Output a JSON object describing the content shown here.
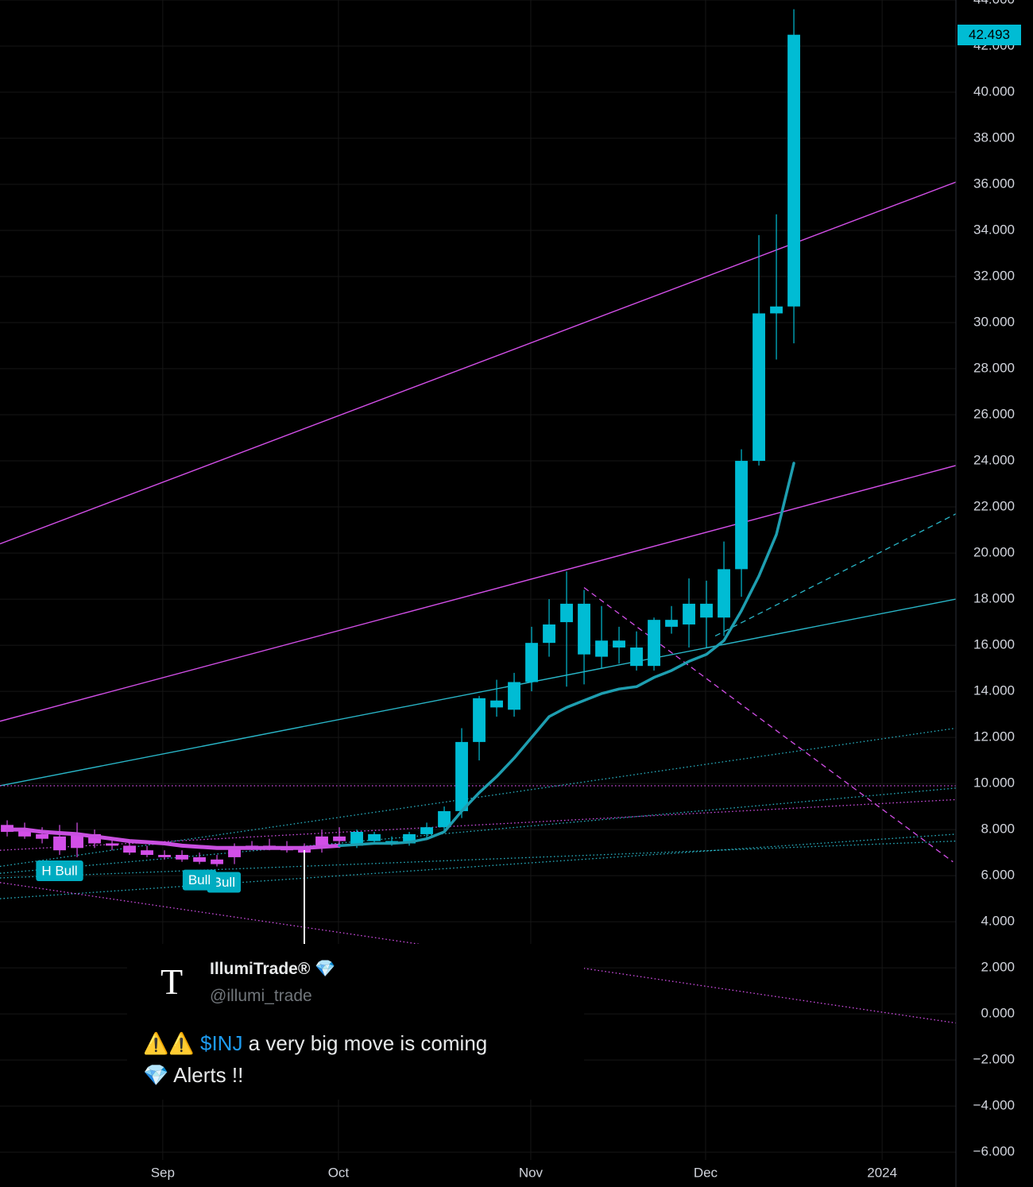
{
  "chart_data": {
    "type": "candlestick",
    "xlim": [
      -0.41,
      54.27
    ],
    "ylim": [
      -6.34,
      44
    ],
    "grid": true,
    "xticks": [
      {
        "value": 8.9,
        "label": "Sep"
      },
      {
        "value": 18.95,
        "label": "Oct"
      },
      {
        "value": 29.95,
        "label": "Nov"
      },
      {
        "value": 39.95,
        "label": "Dec"
      },
      {
        "value": 50.05,
        "label": "2024"
      }
    ],
    "yticks": [
      {
        "value": 44,
        "label": "44.000"
      },
      {
        "value": 42,
        "label": "42.000"
      },
      {
        "value": 40,
        "label": "40.000"
      },
      {
        "value": 38,
        "label": "38.000"
      },
      {
        "value": 36,
        "label": "36.000"
      },
      {
        "value": 34,
        "label": "34.000"
      },
      {
        "value": 32,
        "label": "32.000"
      },
      {
        "value": 30,
        "label": "30.000"
      },
      {
        "value": 28,
        "label": "28.000"
      },
      {
        "value": 26,
        "label": "26.000"
      },
      {
        "value": 24,
        "label": "24.000"
      },
      {
        "value": 22,
        "label": "22.000"
      },
      {
        "value": 20,
        "label": "20.000"
      },
      {
        "value": 18,
        "label": "18.000"
      },
      {
        "value": 16,
        "label": "16.000"
      },
      {
        "value": 14,
        "label": "14.000"
      },
      {
        "value": 12,
        "label": "12.000"
      },
      {
        "value": 10,
        "label": "10.000"
      },
      {
        "value": 8,
        "label": "8.000"
      },
      {
        "value": 6,
        "label": "6.000"
      },
      {
        "value": 4,
        "label": "4.000"
      },
      {
        "value": 2,
        "label": "2.000"
      },
      {
        "value": 0,
        "label": "0.000"
      },
      {
        "value": -2,
        "label": "−2.000"
      },
      {
        "value": -4,
        "label": "−4.000"
      },
      {
        "value": -6,
        "label": "−6.000"
      }
    ],
    "open": [
      8.2,
      8.0,
      7.8,
      7.7,
      7.8,
      7.8,
      7.4,
      7.3,
      7.1,
      6.9,
      6.9,
      6.8,
      6.7,
      7.2,
      7.3,
      7.3,
      7.2,
      7.2,
      7.7,
      7.7,
      7.3,
      7.5,
      7.5,
      7.4,
      7.8,
      8.1,
      8.8,
      11.8,
      13.3,
      13.2,
      14.4,
      16.1,
      17.0,
      17.8,
      15.5,
      16.2,
      15.9,
      15.1,
      16.8,
      16.9,
      17.2,
      17.2,
      19.3,
      24.0,
      30.4,
      30.7
    ],
    "high": [
      8.4,
      8.3,
      8.1,
      8.2,
      8.3,
      8.0,
      7.6,
      7.5,
      7.3,
      7.1,
      7.1,
      7.0,
      6.9,
      7.4,
      7.5,
      7.6,
      7.5,
      7.4,
      8.0,
      8.1,
      8.0,
      7.9,
      7.7,
      7.9,
      8.3,
      9.0,
      12.4,
      13.8,
      14.5,
      14.8,
      16.8,
      18.0,
      19.2,
      18.4,
      17.7,
      16.8,
      16.6,
      17.2,
      17.7,
      18.9,
      18.8,
      20.5,
      24.5,
      33.8,
      34.7,
      43.6
    ],
    "low": [
      7.7,
      7.6,
      7.4,
      6.9,
      6.8,
      7.2,
      7.1,
      6.9,
      6.8,
      6.7,
      6.6,
      6.5,
      6.4,
      6.5,
      7.1,
      7.1,
      7.0,
      6.9,
      7.0,
      7.2,
      7.2,
      7.4,
      7.3,
      7.3,
      7.6,
      7.9,
      8.5,
      11.0,
      12.9,
      12.9,
      14.0,
      15.5,
      14.2,
      14.3,
      15.0,
      15.2,
      14.9,
      14.9,
      16.5,
      15.9,
      15.9,
      16.4,
      18.1,
      23.8,
      28.4,
      29.1
    ],
    "close": [
      7.9,
      7.7,
      7.6,
      7.1,
      7.2,
      7.4,
      7.3,
      7.0,
      6.9,
      6.8,
      6.7,
      6.6,
      6.5,
      6.8,
      7.2,
      7.2,
      7.1,
      7.0,
      7.2,
      7.5,
      7.9,
      7.8,
      7.4,
      7.8,
      8.1,
      8.8,
      11.8,
      13.7,
      13.6,
      14.4,
      16.1,
      16.9,
      17.8,
      15.6,
      16.2,
      15.9,
      15.1,
      17.1,
      17.1,
      17.8,
      17.8,
      19.3,
      24.0,
      30.4,
      30.7,
      42.493
    ],
    "colors": [
      "#d34fe8",
      "#d34fe8",
      "#d34fe8",
      "#d34fe8",
      "#d34fe8",
      "#d34fe8",
      "#d34fe8",
      "#d34fe8",
      "#d34fe8",
      "#d34fe8",
      "#d34fe8",
      "#d34fe8",
      "#d34fe8",
      "#d34fe8",
      "#d34fe8",
      "#d34fe8",
      "#d34fe8",
      "#d34fe8",
      "#d34fe8",
      "#d34fe8",
      "#00bcd4",
      "#00bcd4",
      "#00bcd4",
      "#00bcd4",
      "#00bcd4",
      "#00bcd4",
      "#00bcd4",
      "#00bcd4",
      "#00bcd4",
      "#00bcd4",
      "#00bcd4",
      "#00bcd4",
      "#00bcd4",
      "#00bcd4",
      "#00bcd4",
      "#00bcd4",
      "#00bcd4",
      "#00bcd4",
      "#00bcd4",
      "#00bcd4",
      "#00bcd4",
      "#00bcd4",
      "#00bcd4",
      "#00bcd4",
      "#00bcd4",
      "#00bcd4"
    ],
    "lines": [
      {
        "color": "#c94fe0",
        "width": 5,
        "values": [
          8.0,
          8.0,
          7.9,
          7.85,
          7.8,
          7.7,
          7.6,
          7.5,
          7.45,
          7.4,
          7.3,
          7.25,
          7.2,
          7.2,
          7.2,
          7.2,
          7.2,
          7.2,
          7.25,
          7.3,
          null,
          null,
          null,
          null,
          null,
          null,
          null,
          null,
          null,
          null,
          null,
          null,
          null,
          null,
          null,
          null,
          null,
          null,
          null,
          null,
          null,
          null,
          null,
          null,
          null,
          null
        ]
      },
      {
        "color": "#1e9eb0",
        "width": 3.5,
        "values": [
          null,
          null,
          null,
          null,
          null,
          null,
          null,
          null,
          null,
          null,
          null,
          null,
          null,
          null,
          null,
          null,
          null,
          null,
          null,
          7.3,
          7.35,
          7.4,
          7.4,
          7.45,
          7.6,
          7.9,
          8.8,
          9.6,
          10.3,
          11.1,
          12.0,
          12.9,
          13.3,
          13.6,
          13.9,
          14.1,
          14.2,
          14.6,
          14.9,
          15.3,
          15.6,
          16.2,
          17.5,
          19.0,
          20.8,
          23.9
        ]
      }
    ],
    "trendlines": [
      {
        "color": "#d34fe8",
        "style": "solid",
        "from": [
          -0.41,
          20.4
        ],
        "to": [
          54.27,
          36.1
        ]
      },
      {
        "color": "#d34fe8",
        "style": "solid",
        "from": [
          -0.41,
          12.7
        ],
        "to": [
          54.27,
          23.8
        ]
      },
      {
        "color": "#29b6c8",
        "style": "solid",
        "from": [
          -0.41,
          9.9
        ],
        "to": [
          54.27,
          18.0
        ]
      },
      {
        "color": "#29b6c8",
        "style": "dashed",
        "from": [
          40.5,
          16.4
        ],
        "to": [
          54.27,
          21.7
        ]
      },
      {
        "color": "#d34fe8",
        "style": "dashed",
        "from": [
          33,
          18.5
        ],
        "to": [
          54.1,
          6.6
        ]
      },
      {
        "color": "#d34fe8",
        "style": "dotted",
        "from": [
          -0.41,
          9.9
        ],
        "to": [
          54.27,
          9.9
        ]
      },
      {
        "color": "#29b6c8",
        "style": "dotted",
        "from": [
          -0.41,
          6.4
        ],
        "to": [
          54.27,
          12.4
        ]
      },
      {
        "color": "#29b6c8",
        "style": "dotted",
        "from": [
          -0.41,
          6.1
        ],
        "to": [
          54.27,
          9.8
        ]
      },
      {
        "color": "#d34fe8",
        "style": "dotted",
        "from": [
          -0.41,
          7.1
        ],
        "to": [
          54.27,
          9.3
        ]
      },
      {
        "color": "#29b6c8",
        "style": "dotted",
        "from": [
          -0.41,
          5.0
        ],
        "to": [
          54.27,
          7.8
        ]
      },
      {
        "color": "#29b6c8",
        "style": "dotted",
        "from": [
          -0.41,
          5.9
        ],
        "to": [
          54.27,
          7.5
        ]
      },
      {
        "color": "#d34fe8",
        "style": "dotted",
        "from": [
          -0.41,
          5.7
        ],
        "to": [
          58.8,
          -0.9
        ]
      }
    ],
    "annotations": [
      {
        "text": "H Bull",
        "x": 3
      },
      {
        "text": "Bull",
        "x": 12.4
      },
      {
        "text": "Bull",
        "x": 11
      }
    ],
    "last_price": {
      "value": 42.493,
      "label": "42.493"
    }
  },
  "tweet": {
    "logo": "T",
    "name": "IllumiTrade®",
    "badge": "💎",
    "handle": "@illumi_trade",
    "line1": [
      "⚠️⚠️ ",
      "$INJ",
      " a very big move is coming"
    ],
    "line2": "💎 Alerts !!"
  }
}
